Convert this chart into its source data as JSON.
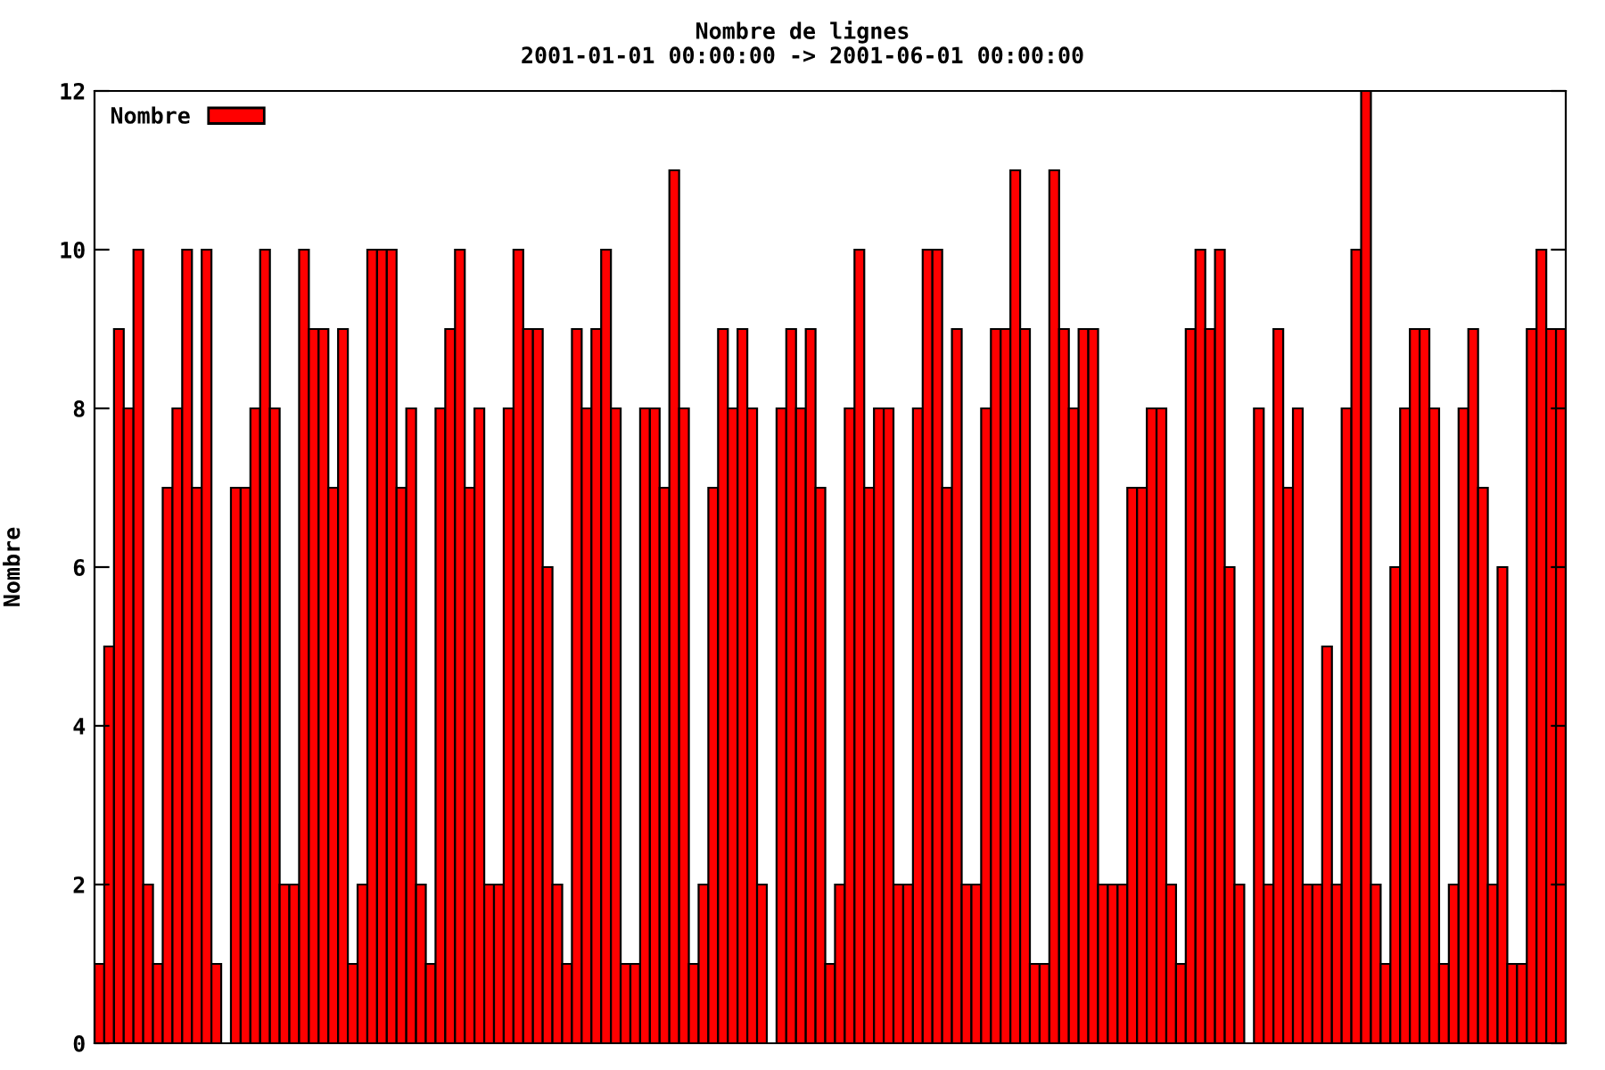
{
  "chart_data": {
    "type": "bar",
    "title": "Nombre de lignes",
    "subtitle": "2001-01-01 00:00:00 -> 2001-06-01 00:00:00",
    "ylabel": "Nombre",
    "categories": [
      null,
      null,
      null,
      null,
      null,
      null,
      null,
      null,
      null,
      null,
      null,
      null,
      null,
      null,
      null,
      null,
      null,
      null,
      null,
      null,
      null,
      null,
      null,
      null,
      null,
      null,
      null,
      null,
      null,
      null,
      null,
      null,
      null,
      null,
      null,
      null,
      null,
      null,
      null,
      null,
      null,
      null,
      null,
      null,
      null,
      null,
      null,
      null,
      null,
      null,
      null,
      null,
      null,
      null,
      null,
      null,
      null,
      null,
      null,
      null,
      null,
      null,
      null,
      null,
      null,
      null,
      null,
      null,
      null,
      null,
      null,
      null,
      null,
      null,
      null,
      null,
      null,
      null,
      null,
      null,
      null,
      null,
      null,
      null,
      null,
      null,
      null,
      null,
      null,
      null,
      null,
      null,
      null,
      null,
      null,
      null,
      null,
      null,
      null,
      null,
      null,
      null,
      null,
      null,
      null,
      null,
      null,
      null,
      null,
      null,
      null,
      null,
      null,
      null,
      null,
      null,
      null,
      null,
      null,
      null,
      null,
      null,
      null,
      null,
      null,
      null,
      null,
      null,
      null,
      null,
      null,
      null,
      null,
      null,
      null,
      null,
      null,
      null,
      null,
      null,
      null,
      null,
      null,
      null,
      null,
      null,
      null,
      null,
      null,
      null,
      null
    ],
    "series": [
      {
        "name": "Nombre",
        "color": "#ff0000",
        "values": [
          1,
          5,
          9,
          8,
          10,
          2,
          1,
          7,
          8,
          10,
          7,
          10,
          1,
          null,
          7,
          7,
          8,
          10,
          8,
          2,
          2,
          10,
          9,
          9,
          7,
          9,
          1,
          2,
          10,
          10,
          10,
          7,
          8,
          2,
          1,
          8,
          9,
          10,
          7,
          8,
          2,
          2,
          8,
          10,
          9,
          9,
          6,
          2,
          1,
          9,
          8,
          9,
          10,
          8,
          1,
          1,
          8,
          8,
          7,
          11,
          8,
          1,
          2,
          7,
          9,
          8,
          9,
          8,
          2,
          null,
          8,
          9,
          8,
          9,
          7,
          1,
          2,
          8,
          10,
          7,
          8,
          8,
          2,
          2,
          8,
          10,
          10,
          7,
          9,
          2,
          2,
          8,
          9,
          9,
          11,
          9,
          1,
          1,
          11,
          9,
          8,
          9,
          9,
          2,
          2,
          2,
          7,
          7,
          8,
          8,
          2,
          1,
          9,
          10,
          9,
          10,
          6,
          2,
          null,
          8,
          2,
          9,
          7,
          8,
          2,
          2,
          5,
          2,
          8,
          10,
          12,
          2,
          1,
          6,
          8,
          9,
          9,
          8,
          1,
          2,
          8,
          9,
          7,
          2,
          6,
          1,
          1,
          9,
          10,
          9,
          9
        ]
      }
    ],
    "ylim": [
      0,
      12
    ],
    "yticks": [
      0,
      2,
      4,
      6,
      8,
      10,
      12
    ],
    "grid": false,
    "legend": "top left",
    "tick_labels": "y"
  }
}
